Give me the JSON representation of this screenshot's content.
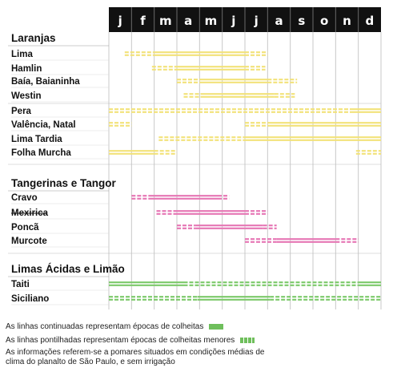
{
  "months": [
    "j",
    "f",
    "m",
    "a",
    "m",
    "j",
    "j",
    "a",
    "s",
    "o",
    "n",
    "d"
  ],
  "colors": {
    "orange": "#f2e27a",
    "tangerine": "#e676b4",
    "lime": "#7cc96a",
    "header": "#111111",
    "grid": "#c8c8c8"
  },
  "groups": [
    {
      "title": "Laranjas",
      "color": "orange"
    },
    {
      "title": "Tangerinas e Tangor",
      "color": "tangerine"
    },
    {
      "title": "Limas Ácidas e Limão",
      "color": "lime"
    }
  ],
  "rows": [
    {
      "label": "Lima",
      "group": 0,
      "segments": [
        {
          "start": 0.7,
          "end": 2.0,
          "style": "dash"
        },
        {
          "start": 2.0,
          "end": 6.0,
          "style": "solid"
        },
        {
          "start": 6.0,
          "end": 7.0,
          "style": "dash"
        }
      ]
    },
    {
      "label": "Hamlin",
      "group": 0,
      "segments": [
        {
          "start": 1.9,
          "end": 3.0,
          "style": "dash"
        },
        {
          "start": 3.0,
          "end": 6.0,
          "style": "solid"
        },
        {
          "start": 6.0,
          "end": 6.9,
          "style": "dash"
        }
      ]
    },
    {
      "label": "Baía, Baianinha",
      "group": 0,
      "segments": [
        {
          "start": 3.0,
          "end": 4.0,
          "style": "dash"
        },
        {
          "start": 4.0,
          "end": 7.0,
          "style": "solid"
        },
        {
          "start": 7.0,
          "end": 8.3,
          "style": "dash"
        }
      ]
    },
    {
      "label": "Westin",
      "group": 0,
      "segments": [
        {
          "start": 3.3,
          "end": 4.2,
          "style": "dash"
        },
        {
          "start": 4.2,
          "end": 7.3,
          "style": "solid"
        },
        {
          "start": 7.3,
          "end": 8.2,
          "style": "dash"
        }
      ]
    },
    {
      "label": "Pera",
      "group": 0,
      "segments": [
        {
          "start": 0,
          "end": 10.8,
          "style": "dash"
        },
        {
          "start": 10.8,
          "end": 12,
          "style": "solid"
        }
      ]
    },
    {
      "label": "Valência, Natal",
      "group": 0,
      "segments": [
        {
          "start": 0,
          "end": 1.0,
          "style": "dash"
        },
        {
          "start": 6.0,
          "end": 7.0,
          "style": "dash"
        },
        {
          "start": 7.0,
          "end": 12,
          "style": "solid"
        }
      ]
    },
    {
      "label": "Lima Tardia",
      "group": 0,
      "segments": [
        {
          "start": 2.2,
          "end": 6.0,
          "style": "dash"
        },
        {
          "start": 6.0,
          "end": 12,
          "style": "solid"
        }
      ]
    },
    {
      "label": "Folha Murcha",
      "group": 0,
      "segments": [
        {
          "start": 0,
          "end": 2.0,
          "style": "solid"
        },
        {
          "start": 2.0,
          "end": 3.0,
          "style": "dash"
        },
        {
          "start": 10.9,
          "end": 12,
          "style": "dash"
        }
      ]
    },
    {
      "label": "Cravo",
      "group": 1,
      "segments": [
        {
          "start": 1.0,
          "end": 1.8,
          "style": "dash"
        },
        {
          "start": 1.8,
          "end": 4.8,
          "style": "solid"
        },
        {
          "start": 4.8,
          "end": 5.3,
          "style": "dash"
        }
      ]
    },
    {
      "label": "Mexirica",
      "group": 1,
      "segments": [
        {
          "start": 2.1,
          "end": 3.0,
          "style": "dash"
        },
        {
          "start": 3.0,
          "end": 6.0,
          "style": "solid"
        },
        {
          "start": 6.0,
          "end": 7.0,
          "style": "dash"
        }
      ]
    },
    {
      "label": "Poncã",
      "group": 1,
      "segments": [
        {
          "start": 3.0,
          "end": 3.8,
          "style": "dash"
        },
        {
          "start": 3.8,
          "end": 6.8,
          "style": "solid"
        },
        {
          "start": 6.8,
          "end": 7.4,
          "style": "dash"
        }
      ]
    },
    {
      "label": "Murcote",
      "group": 1,
      "segments": [
        {
          "start": 6.0,
          "end": 7.4,
          "style": "dash"
        },
        {
          "start": 7.4,
          "end": 10.0,
          "style": "solid"
        },
        {
          "start": 10.0,
          "end": 11.0,
          "style": "dash"
        }
      ]
    },
    {
      "label": "Taiti",
      "group": 2,
      "segments": [
        {
          "start": 0,
          "end": 3.3,
          "style": "solid"
        },
        {
          "start": 3.3,
          "end": 11.0,
          "style": "dash"
        },
        {
          "start": 11.0,
          "end": 12,
          "style": "solid"
        }
      ]
    },
    {
      "label": "Siciliano",
      "group": 2,
      "segments": [
        {
          "start": 0,
          "end": 3.9,
          "style": "dash"
        },
        {
          "start": 3.9,
          "end": 7.1,
          "style": "solid"
        },
        {
          "start": 7.1,
          "end": 12,
          "style": "dash"
        }
      ]
    }
  ],
  "legend": {
    "solid": "As linhas continuadas representam épocas de colheitas",
    "dashed": "As linhas pontilhadas representam épocas de colheitas menores",
    "note": "As informações referem-se a pomares situados em condições médias de clima do planalto de São Paulo, e sem irrigação"
  }
}
